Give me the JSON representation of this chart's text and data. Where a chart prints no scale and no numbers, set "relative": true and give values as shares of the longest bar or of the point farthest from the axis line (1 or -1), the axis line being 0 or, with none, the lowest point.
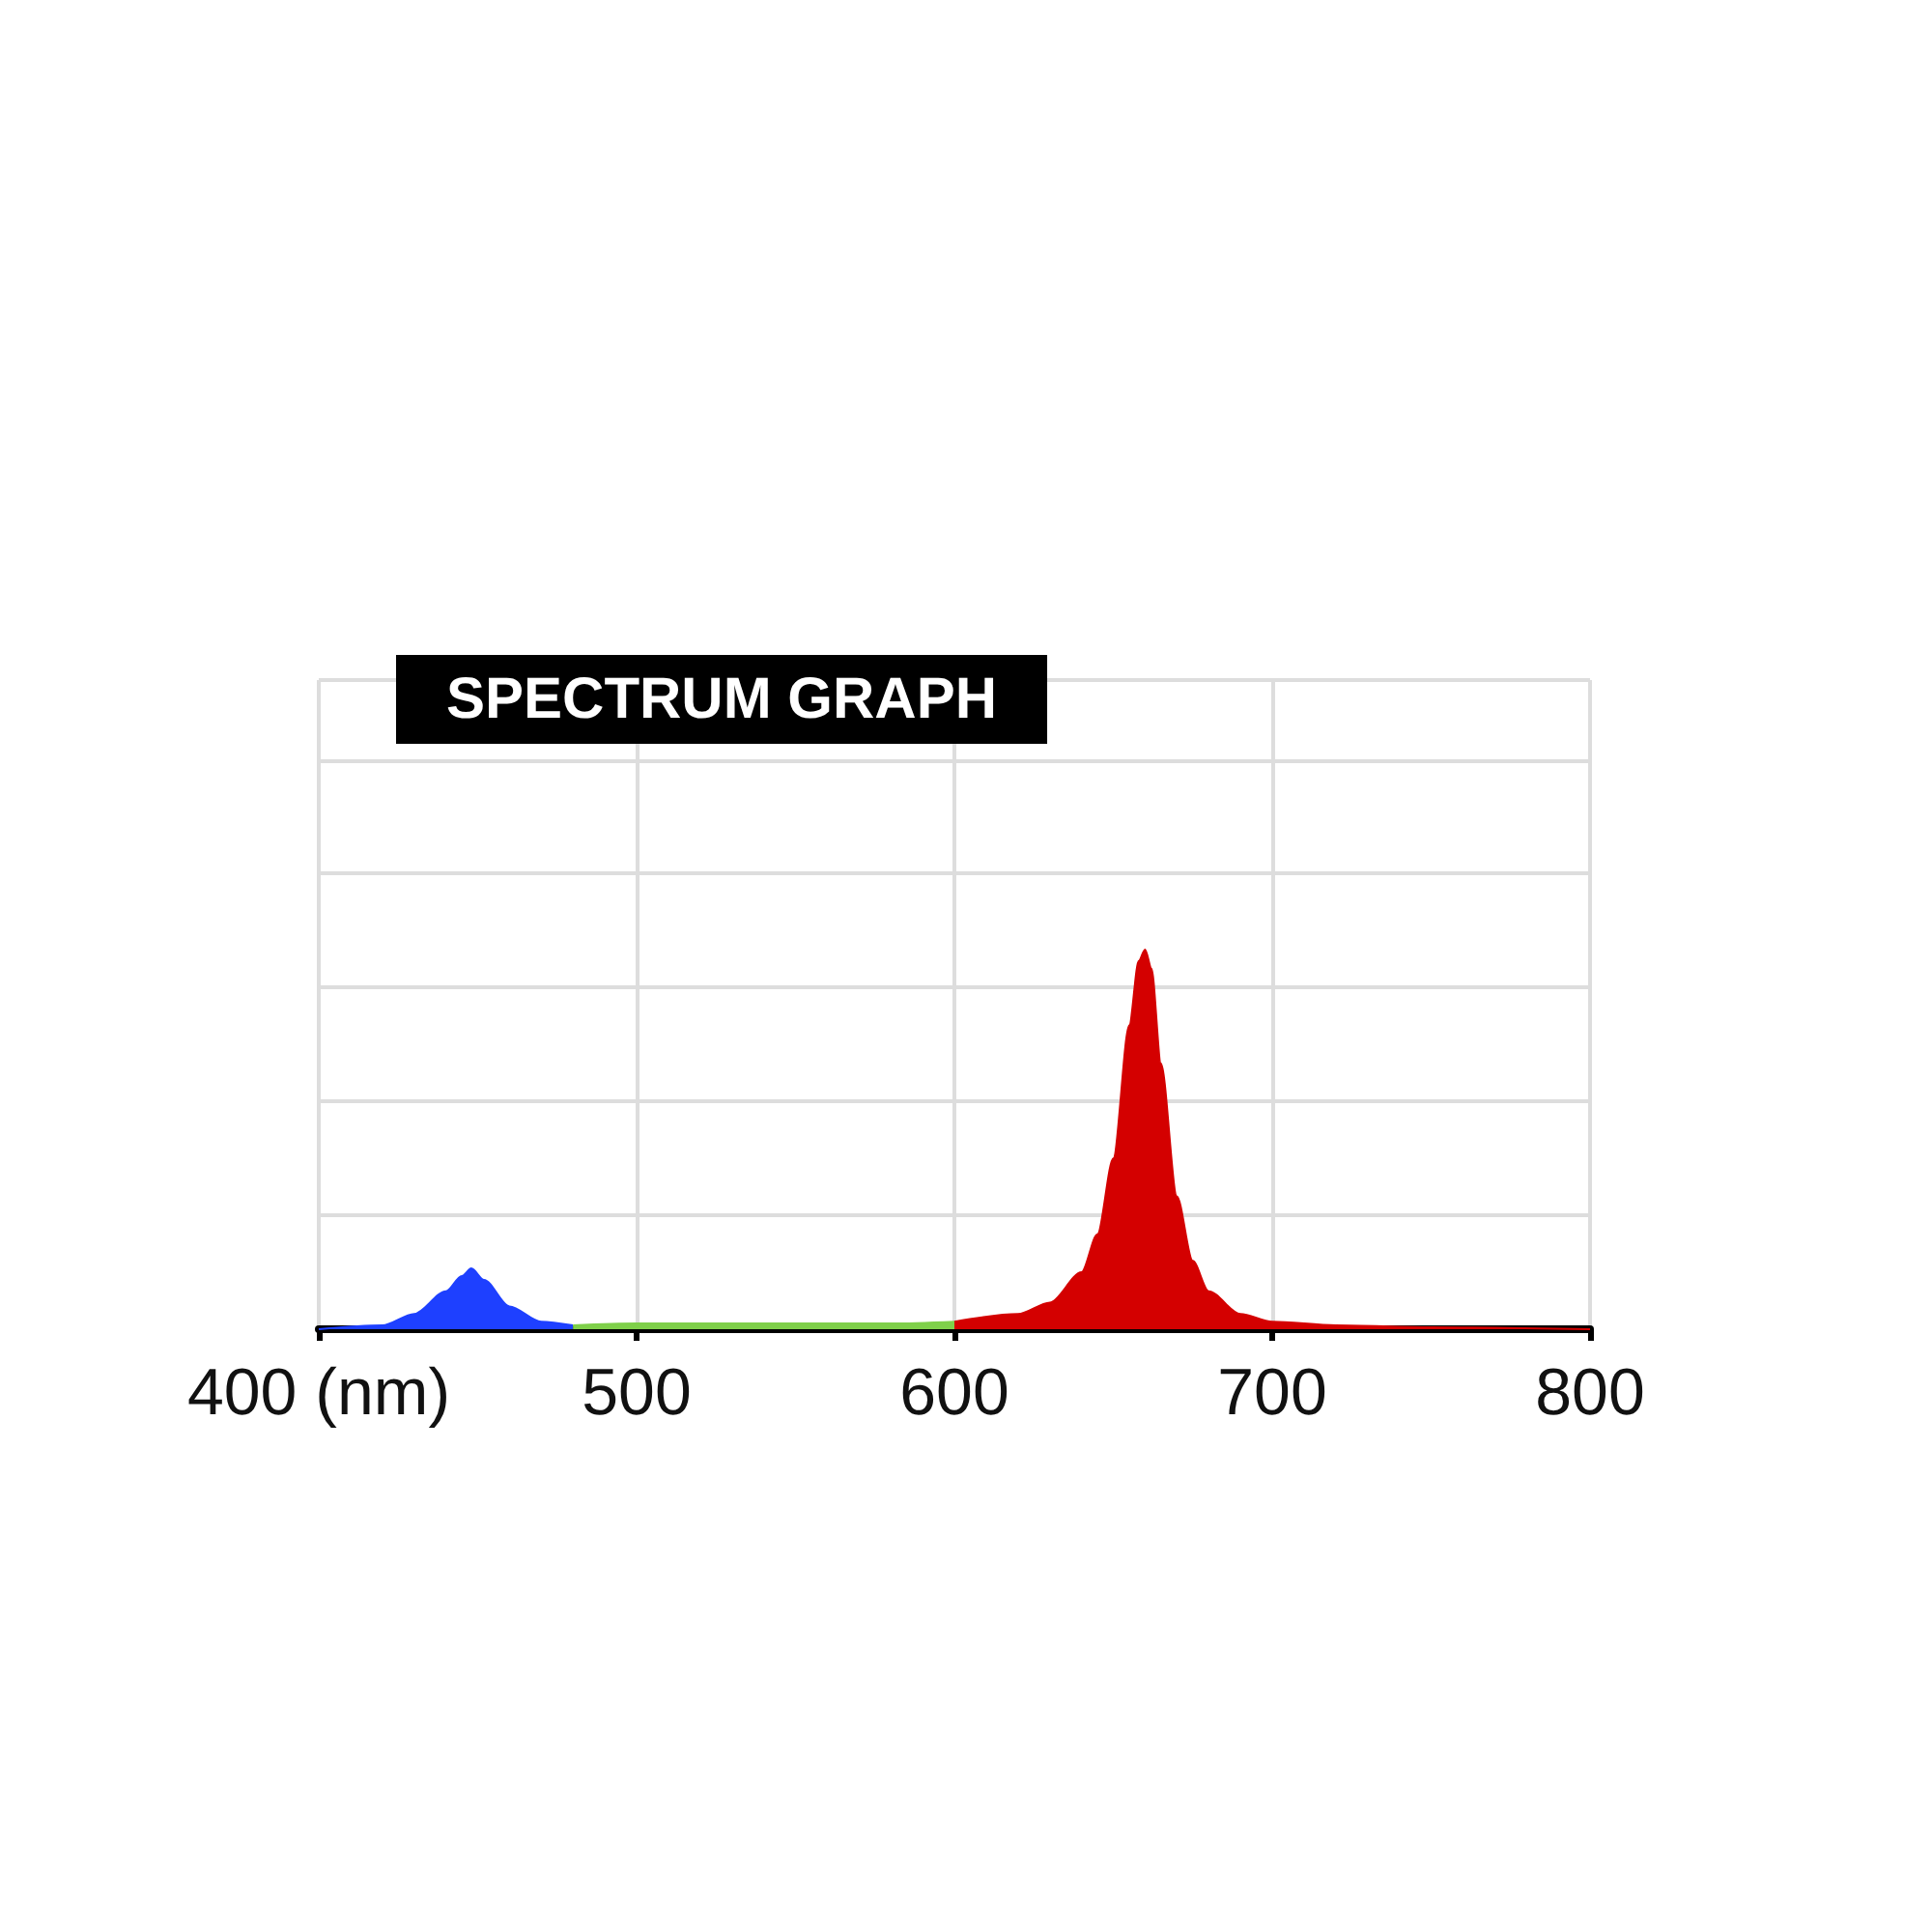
{
  "chart_data": {
    "type": "area",
    "title": "SPECTRUM GRAPH",
    "relative": true,
    "grid": true,
    "tick_labels": "x",
    "xlim": [
      400,
      800
    ],
    "xticks": [
      {
        "value": 400,
        "label": "400 (nm)"
      },
      500,
      600,
      700,
      800
    ],
    "series": [
      {
        "color": "#1e40ff",
        "x": [
          400,
          420,
          430,
          440,
          445,
          448,
          452,
          460,
          470,
          480
        ],
        "values": [
          0,
          0.01,
          0.04,
          0.1,
          0.14,
          0.16,
          0.13,
          0.06,
          0.02,
          0.01
        ]
      },
      {
        "color": "#7fd04a",
        "x": [
          480,
          500,
          520,
          540,
          560,
          580,
          600
        ],
        "values": [
          0.01,
          0.015,
          0.015,
          0.015,
          0.015,
          0.015,
          0.02
        ]
      },
      {
        "color": "#d40000",
        "x": [
          600,
          620,
          630,
          640,
          645,
          650,
          655,
          658,
          660,
          662,
          665,
          670,
          675,
          680,
          690,
          700,
          720,
          750,
          800
        ],
        "values": [
          0.02,
          0.04,
          0.07,
          0.15,
          0.25,
          0.45,
          0.8,
          0.97,
          1,
          0.95,
          0.7,
          0.35,
          0.18,
          0.1,
          0.04,
          0.02,
          0.01,
          0.005,
          0
        ]
      }
    ]
  }
}
